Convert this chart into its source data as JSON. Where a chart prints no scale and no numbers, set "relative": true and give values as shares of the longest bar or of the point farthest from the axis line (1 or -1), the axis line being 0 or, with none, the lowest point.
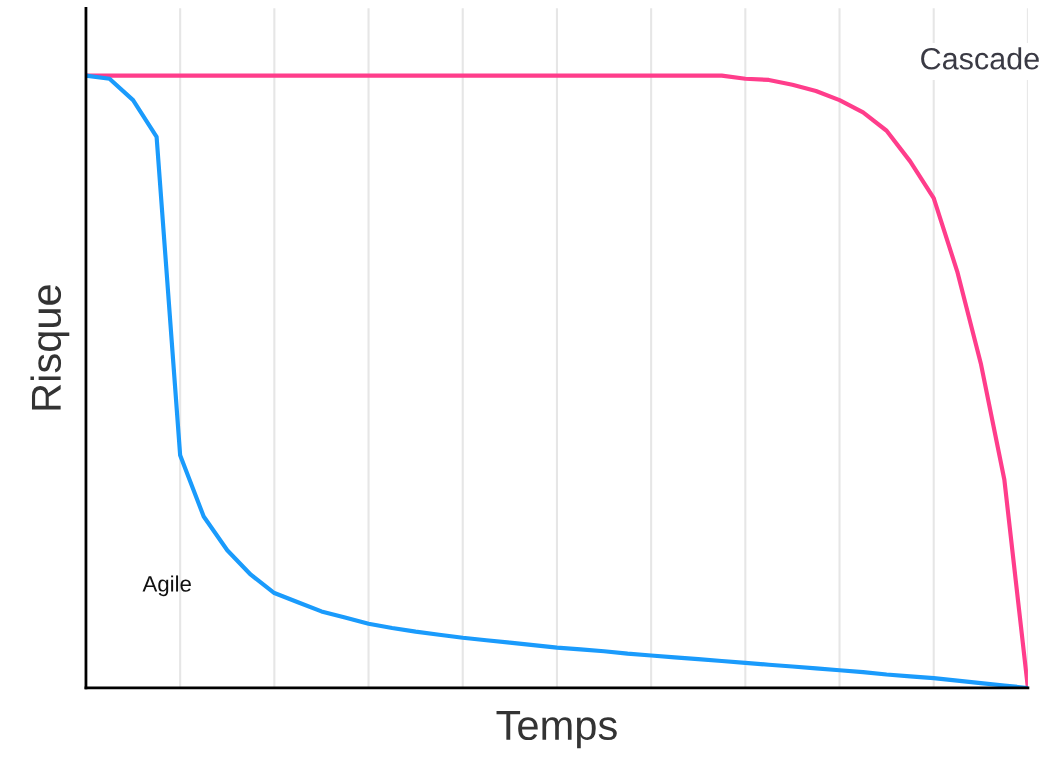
{
  "chart_data": {
    "type": "line",
    "relative": true,
    "xlabel": "Temps",
    "ylabel": "Risque",
    "grid": "x",
    "marker": "none",
    "line_style": "solid",
    "categories": [
      null,
      null,
      null,
      null,
      null,
      null,
      null,
      null,
      null,
      null,
      null,
      null,
      null,
      null,
      null,
      null,
      null,
      null,
      null,
      null,
      null,
      null,
      null,
      null,
      null,
      null,
      null,
      null,
      null,
      null,
      null,
      null,
      null,
      null,
      null,
      null,
      null,
      null,
      null,
      null,
      null
    ],
    "series": [
      {
        "name": "Cascade",
        "color": "#ff3d8b",
        "values": [
          1,
          1,
          1,
          1,
          1,
          1,
          1,
          1,
          1,
          1,
          1,
          1,
          1,
          1,
          1,
          1,
          1,
          1,
          1,
          1,
          1,
          1,
          1,
          1,
          1,
          1,
          1,
          1,
          0.995,
          0.993,
          0.985,
          0.975,
          0.96,
          0.94,
          0.91,
          0.86,
          0.8,
          0.68,
          0.53,
          0.34,
          0
        ]
      },
      {
        "name": "Agile",
        "color": "#1a9bfc",
        "values": [
          1,
          0.995,
          0.96,
          0.9,
          0.38,
          0.28,
          0.225,
          0.185,
          0.155,
          0.14,
          0.125,
          0.115,
          0.105,
          0.098,
          0.092,
          0.087,
          0.082,
          0.078,
          0.074,
          0.07,
          0.066,
          0.063,
          0.06,
          0.056,
          0.053,
          0.05,
          0.047,
          0.044,
          0.041,
          0.038,
          0.035,
          0.032,
          0.029,
          0.026,
          0.022,
          0.019,
          0.016,
          0.012,
          0.008,
          0.004,
          0
        ]
      }
    ]
  }
}
